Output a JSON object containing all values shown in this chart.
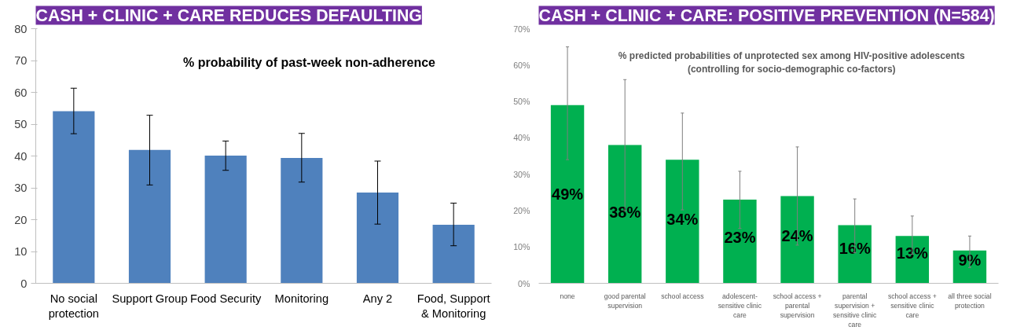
{
  "chart_data": [
    {
      "type": "bar",
      "title": "CASH + CLINIC + CARE REDUCES DEFAULTING",
      "subtitle": "% probability of past-week non-adherence",
      "categories": [
        "No social protection",
        "Support Group",
        "Food Security",
        "Monitoring",
        "Any 2",
        "Food, Support & Monitoring"
      ],
      "values": [
        54.1,
        41.9,
        40.1,
        39.4,
        28.5,
        18.4
      ],
      "color": "#4f81bd",
      "errors": [
        [
          47,
          61.3
        ],
        [
          30.9,
          52.8
        ],
        [
          35.5,
          44.7
        ],
        [
          31.8,
          47.1
        ],
        [
          18.6,
          38.4
        ],
        [
          11.8,
          25.2
        ]
      ],
      "ylim": [
        0,
        80
      ],
      "yticks": [
        0,
        10,
        20,
        30,
        40,
        50,
        60,
        70,
        80
      ],
      "grid": false
    },
    {
      "type": "bar",
      "title": "CASH + CLINIC + CARE: POSITIVE PREVENTION (N=584)",
      "subtitle": "% predicted probabilities of unprotected sex among HIV-positive adolescents\n(controlling for socio-demographic co-factors)",
      "categories": [
        "none",
        "good parental supervision",
        "school access",
        "adolescent-sensitive clinic care",
        "school access + parental supervision",
        "parental supervision + sensitive clinic care",
        "school access + sensitive clinic care",
        "all three social protection"
      ],
      "values": [
        49,
        38,
        34,
        23,
        24,
        16,
        13,
        9
      ],
      "color": "#00b050",
      "value_labels": [
        "49%",
        "38%",
        "34%",
        "23%",
        "24%",
        "16%",
        "13%",
        "9%"
      ],
      "errors": [
        [
          34,
          65
        ],
        [
          20,
          56
        ],
        [
          20.2,
          46.8
        ],
        [
          15.1,
          30.8
        ],
        [
          10.5,
          37.5
        ],
        [
          8.4,
          23.2
        ],
        [
          8,
          18.5
        ],
        [
          4.3,
          13
        ]
      ],
      "ylim": [
        0,
        70
      ],
      "yticks": [
        {
          "value": 0,
          "label": "0%"
        },
        {
          "value": 10,
          "label": "10%"
        },
        {
          "value": 20,
          "label": "20%"
        },
        {
          "value": 30,
          "label": "30%"
        },
        {
          "value": 40,
          "label": "40%"
        },
        {
          "value": 50,
          "label": "50%"
        },
        {
          "value": 60,
          "label": "60%"
        },
        {
          "value": 70,
          "label": "70%"
        }
      ],
      "grid": false
    }
  ]
}
